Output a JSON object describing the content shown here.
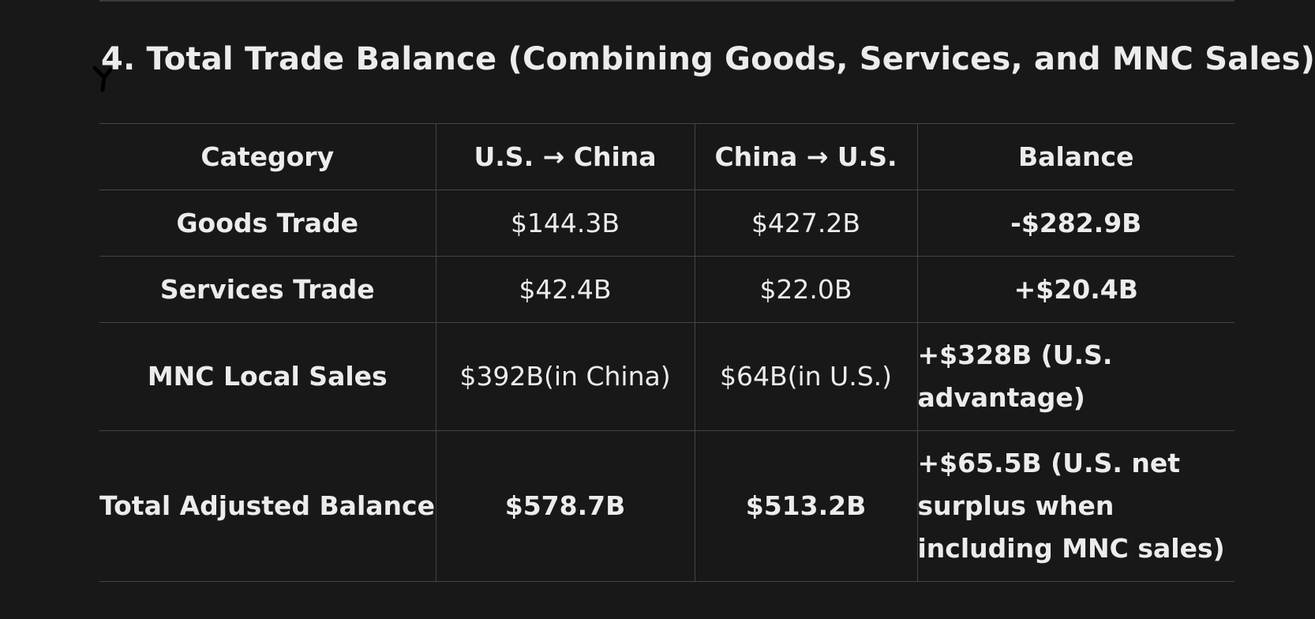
{
  "section": {
    "title": "4. Total Trade Balance (Combining Goods, Services, and MNC Sales)"
  },
  "table": {
    "headers": [
      "Category",
      "U.S. → China",
      "China → U.S.",
      "Balance"
    ],
    "rows": [
      {
        "category": "Goods Trade",
        "us_to_china": "$144.3B",
        "china_to_us": "$427.2B",
        "balance": "-$282.9B"
      },
      {
        "category": "Services Trade",
        "us_to_china": "$42.4B",
        "china_to_us": "$22.0B",
        "balance": "+$20.4B"
      },
      {
        "category": "MNC Local Sales",
        "us_to_china": "$392B(in China)",
        "china_to_us": "$64B(in U.S.)",
        "balance": "+$328B (U.S. advantage)"
      },
      {
        "category": "Total Adjusted Balance",
        "us_to_china": "$578.7B",
        "china_to_us": "$513.2B",
        "balance": "+$65.5B (U.S. net surplus when including MNC sales)"
      }
    ]
  },
  "icons": {
    "cursor": "pen-cursor-icon"
  }
}
